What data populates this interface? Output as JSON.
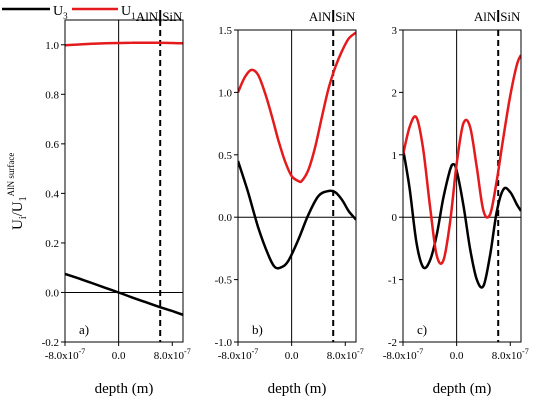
{
  "legend": [
    {
      "label": "U",
      "sub": "3",
      "color": "#000000"
    },
    {
      "label": "U",
      "sub": "1",
      "color": "#e41a1c"
    }
  ],
  "ylabel": {
    "main": "U",
    "sub": "i",
    "slash": "/U",
    "sub2": "1",
    "sup": "AlN surface"
  },
  "xlabel": "depth (m)",
  "interface": {
    "left_label": "AlN",
    "right_label": "SiN"
  },
  "chart_data": [
    {
      "type": "line",
      "panel_label": "a)",
      "xlim": [
        -8e-07,
        9.6e-07
      ],
      "ylim": [
        -0.2,
        1.1
      ],
      "yticks": [
        -0.2,
        0.0,
        0.2,
        0.4,
        0.6,
        0.8,
        1.0
      ],
      "ytick_labels": [
        "-0.2",
        "0.0",
        "0.2",
        "0.4",
        "0.6",
        "0.8",
        "1.0"
      ],
      "xticks": [
        -8e-07,
        0.0,
        8e-07
      ],
      "xtick_labels": [
        "-8.0x10-7",
        "0.0",
        "8.0x10-7"
      ],
      "interface_x": 6.2e-07,
      "series": [
        {
          "name": "U3",
          "color": "#000000",
          "x": [
            -8e-07,
            -6e-07,
            -4e-07,
            -2e-07,
            0.0,
            2e-07,
            4e-07,
            6e-07,
            8e-07,
            9.6e-07
          ],
          "y": [
            0.075,
            0.057,
            0.038,
            0.019,
            0.0,
            -0.02,
            -0.039,
            -0.058,
            -0.075,
            -0.09
          ]
        },
        {
          "name": "U1",
          "color": "#e41a1c",
          "x": [
            -8e-07,
            -6e-07,
            -4e-07,
            -2e-07,
            0.0,
            2e-07,
            4e-07,
            6e-07,
            8e-07,
            9.6e-07
          ],
          "y": [
            0.998,
            1.001,
            1.004,
            1.006,
            1.007,
            1.008,
            1.008,
            1.008,
            1.007,
            1.006
          ]
        }
      ]
    },
    {
      "type": "line",
      "panel_label": "b)",
      "xlim": [
        -8e-07,
        9.6e-07
      ],
      "ylim": [
        -1.0,
        1.5
      ],
      "yticks": [
        -1.0,
        -0.5,
        0.0,
        0.5,
        1.0,
        1.5
      ],
      "ytick_labels": [
        "-1.0",
        "-0.5",
        "0.0",
        "0.5",
        "1.0",
        "1.5"
      ],
      "xticks": [
        -8e-07,
        0.0,
        8e-07
      ],
      "xtick_labels": [
        "-8.0x10-7",
        "0.0",
        "8.0x10-7"
      ],
      "interface_x": 6.2e-07,
      "series": [
        {
          "name": "U3",
          "color": "#000000",
          "x": [
            -8e-07,
            -6.5e-07,
            -5e-07,
            -3.5e-07,
            -2.5e-07,
            -1.5e-07,
            -5e-08,
            1e-07,
            2.5e-07,
            4e-07,
            5.5e-07,
            6.5e-07,
            7.5e-07,
            8.5e-07,
            9.6e-07
          ],
          "y": [
            0.45,
            0.2,
            -0.08,
            -0.3,
            -0.4,
            -0.4,
            -0.35,
            -0.18,
            0.02,
            0.17,
            0.21,
            0.2,
            0.14,
            0.05,
            -0.02
          ]
        },
        {
          "name": "U1",
          "color": "#e41a1c",
          "x": [
            -8e-07,
            -7e-07,
            -6e-07,
            -5e-07,
            -4e-07,
            -3e-07,
            -2e-07,
            -1e-07,
            0.0,
            1e-07,
            1.5e-07,
            2.5e-07,
            3.5e-07,
            4.5e-07,
            5.5e-07,
            6.5e-07,
            7.5e-07,
            8.5e-07,
            9.6e-07
          ],
          "y": [
            1.0,
            1.12,
            1.18,
            1.14,
            1.0,
            0.82,
            0.62,
            0.45,
            0.33,
            0.29,
            0.29,
            0.38,
            0.56,
            0.8,
            1.03,
            1.2,
            1.33,
            1.43,
            1.48
          ]
        }
      ]
    },
    {
      "type": "line",
      "panel_label": "c)",
      "xlim": [
        -8e-07,
        9.6e-07
      ],
      "ylim": [
        -2,
        3
      ],
      "yticks": [
        -2,
        -1,
        0,
        1,
        2,
        3
      ],
      "ytick_labels": [
        "-2",
        "-1",
        "0",
        "1",
        "2",
        "3"
      ],
      "xticks": [
        -8e-07,
        0.0,
        8e-07
      ],
      "xtick_labels": [
        "-8.0x10-7",
        "0.0",
        "8.0x10-7"
      ],
      "interface_x": 6.2e-07,
      "series": [
        {
          "name": "U3",
          "color": "#000000",
          "x": [
            -8e-07,
            -7e-07,
            -6e-07,
            -5e-07,
            -4e-07,
            -3e-07,
            -2e-07,
            -1e-07,
            -5e-08,
            0.0,
            1e-07,
            2e-07,
            3e-07,
            4e-07,
            5e-07,
            6e-07,
            7e-07,
            8e-07,
            9e-07,
            9.6e-07
          ],
          "y": [
            1.1,
            0.45,
            -0.4,
            -0.8,
            -0.7,
            -0.3,
            0.3,
            0.75,
            0.85,
            0.75,
            0.2,
            -0.5,
            -1.0,
            -1.1,
            -0.6,
            0.1,
            0.45,
            0.4,
            0.2,
            0.1
          ]
        },
        {
          "name": "U1",
          "color": "#e41a1c",
          "x": [
            -8e-07,
            -7e-07,
            -6e-07,
            -5e-07,
            -4e-07,
            -3e-07,
            -2e-07,
            -1e-07,
            0.0,
            1e-07,
            2e-07,
            3e-07,
            4e-07,
            5e-07,
            6e-07,
            7e-07,
            8e-07,
            9e-07,
            9.6e-07
          ],
          "y": [
            1.0,
            1.45,
            1.6,
            1.1,
            0.2,
            -0.6,
            -0.7,
            -0.1,
            0.85,
            1.5,
            1.45,
            0.8,
            0.1,
            0.05,
            0.6,
            1.3,
            1.95,
            2.45,
            2.6
          ]
        }
      ]
    }
  ]
}
